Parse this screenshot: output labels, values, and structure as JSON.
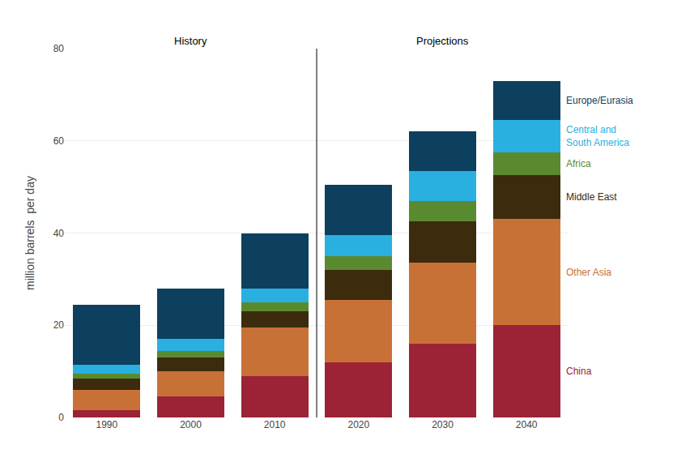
{
  "chart_data": {
    "type": "bar",
    "stacked": true,
    "ylabel": "million barrels  per day",
    "categories": [
      1990,
      2000,
      2010,
      2020,
      2030,
      2040
    ],
    "series": [
      {
        "name": "China",
        "color": "#9b2335",
        "values": [
          1.5,
          4.5,
          9.0,
          12.0,
          16.0,
          20.0
        ]
      },
      {
        "name": "Other Asia",
        "color": "#c87137",
        "values": [
          4.5,
          5.5,
          10.5,
          13.5,
          17.5,
          23.0
        ]
      },
      {
        "name": "Middle East",
        "color": "#3d2b0e",
        "values": [
          2.5,
          3.0,
          3.5,
          6.5,
          9.0,
          9.5
        ]
      },
      {
        "name": "Africa",
        "color": "#5a8a30",
        "values": [
          1.0,
          1.5,
          2.0,
          3.0,
          4.5,
          5.0
        ]
      },
      {
        "name": "Central and\nSouth America",
        "color": "#2ab0e0",
        "values": [
          2.0,
          2.5,
          3.0,
          4.5,
          6.5,
          7.0
        ]
      },
      {
        "name": "Europe/Eurasia",
        "color": "#0d3f5f",
        "values": [
          13.0,
          11.0,
          12.0,
          11.0,
          8.5,
          8.5
        ]
      }
    ],
    "annotations": [
      {
        "text": "History",
        "x": 2000
      },
      {
        "text": "Projections",
        "x": 2030
      }
    ],
    "ylim": [
      0,
      80
    ],
    "yticks": [
      0,
      20,
      40,
      60,
      80
    ],
    "grid": true
  }
}
